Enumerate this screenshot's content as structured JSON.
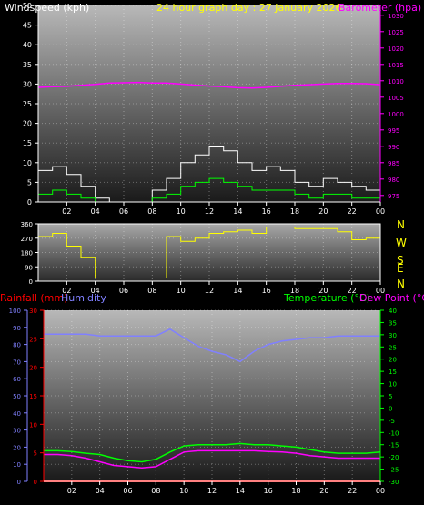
{
  "header": {
    "title": "24 hour graph day : 27 January 2026",
    "wind_label": "Windspeed (kph)",
    "baro_label": "Barometer (hpa)",
    "rain_label": "Rainfall (mm)",
    "humidity_label": "Humidity",
    "temp_label": "Temperature (°C)",
    "dew_label": "Dew Point (°C)"
  },
  "colors": {
    "title": "#ffff00",
    "wind": "#ffffff",
    "wind_avg": "#00ff00",
    "baro": "#ff00ff",
    "direction": "#ffff00",
    "rain": "#ff0000",
    "rain_bar": "#ffcc00",
    "humidity": "#8080ff",
    "temp": "#00ff00",
    "dew": "#ff00ff",
    "axis": "#ffffff"
  },
  "chart_data": [
    {
      "type": "line",
      "name": "wind-baro",
      "x_ticks": [
        "02",
        "04",
        "06",
        "08",
        "10",
        "12",
        "14",
        "16",
        "18",
        "20",
        "22",
        "00"
      ],
      "y_left_ticks": [
        0,
        5,
        10,
        15,
        20,
        25,
        30,
        35,
        40,
        45,
        50
      ],
      "y_right_ticks": [
        975,
        980,
        985,
        990,
        995,
        1000,
        1005,
        1010,
        1015,
        1020,
        1025,
        1030
      ],
      "ylim_left": [
        0,
        50
      ],
      "ylim_right": [
        973,
        1033
      ],
      "x": [
        0,
        1,
        2,
        3,
        4,
        5,
        6,
        7,
        8,
        9,
        10,
        11,
        12,
        13,
        14,
        15,
        16,
        17,
        18,
        19,
        20,
        21,
        22,
        23,
        24
      ],
      "series": [
        {
          "values": [
            8,
            9,
            7,
            4,
            1,
            0,
            0,
            0,
            3,
            6,
            10,
            12,
            14,
            13,
            10,
            8,
            9,
            8,
            5,
            4,
            6,
            5,
            4,
            3,
            8
          ]
        },
        {
          "values": [
            2,
            3,
            2,
            1,
            0,
            0,
            0,
            0,
            1,
            2,
            4,
            5,
            6,
            5,
            4,
            3,
            3,
            3,
            2,
            1,
            2,
            2,
            1,
            1,
            3
          ]
        },
        {
          "values": [
            1008.0,
            1008.2,
            1008.3,
            1008.6,
            1008.9,
            1009.3,
            1009.4,
            1009.5,
            1009.3,
            1009.3,
            1009.0,
            1008.7,
            1008.4,
            1008.2,
            1007.9,
            1007.8,
            1008.0,
            1008.3,
            1008.6,
            1008.8,
            1009.0,
            1009.2,
            1009.2,
            1009.1,
            1008.8
          ]
        }
      ]
    },
    {
      "type": "line",
      "name": "direction",
      "x_ticks": [
        "02",
        "04",
        "06",
        "08",
        "10",
        "12",
        "14",
        "16",
        "18",
        "20",
        "22",
        "00"
      ],
      "y_left_ticks": [
        0,
        90,
        180,
        270,
        360
      ],
      "y_right_ticks": [
        "N",
        "W",
        "S",
        "E",
        "N"
      ],
      "ylim_left": [
        0,
        360
      ],
      "x": [
        0,
        1,
        2,
        3,
        4,
        5,
        6,
        7,
        8,
        9,
        10,
        11,
        12,
        13,
        14,
        15,
        16,
        17,
        18,
        19,
        20,
        21,
        22,
        23,
        24
      ],
      "series": [
        {
          "values": [
            280,
            300,
            220,
            150,
            20,
            20,
            20,
            20,
            20,
            280,
            250,
            270,
            300,
            310,
            320,
            300,
            340,
            340,
            330,
            330,
            330,
            310,
            260,
            270,
            270
          ]
        }
      ]
    },
    {
      "type": "line",
      "name": "temp-humidity",
      "x_ticks": [
        "02",
        "04",
        "06",
        "08",
        "10",
        "12",
        "14",
        "16",
        "18",
        "20",
        "22",
        "00"
      ],
      "y_left_ticks": [
        0,
        10,
        20,
        30,
        40,
        50,
        60,
        70,
        80,
        90,
        100
      ],
      "y_left2_ticks": [
        0,
        5,
        10,
        15,
        20,
        25,
        30
      ],
      "y_right_ticks": [
        -30,
        -25,
        -20,
        -15,
        -10,
        -5,
        0,
        5,
        10,
        15,
        20,
        25,
        30,
        35,
        40
      ],
      "ylim_left": [
        0,
        100
      ],
      "ylim_right": [
        -30,
        40
      ],
      "x": [
        0,
        1,
        2,
        3,
        4,
        5,
        6,
        7,
        8,
        9,
        10,
        11,
        12,
        13,
        14,
        15,
        16,
        17,
        18,
        19,
        20,
        21,
        22,
        23,
        24
      ],
      "series": [
        {
          "values": [
            86,
            86,
            86,
            86,
            85,
            85,
            85,
            85,
            85,
            89,
            84,
            79,
            76,
            74,
            70,
            76,
            80,
            82,
            83,
            84,
            84,
            85,
            85,
            85,
            85
          ]
        },
        {
          "values": [
            -17.5,
            -17.5,
            -17.8,
            -18.5,
            -19,
            -20.5,
            -21.5,
            -22,
            -21,
            -18,
            -15.5,
            -15,
            -15,
            -15,
            -14.5,
            -15,
            -15,
            -15.5,
            -16,
            -17,
            -18,
            -18.5,
            -18.5,
            -18.5,
            -18
          ]
        },
        {
          "values": [
            -19,
            -19,
            -19.5,
            -20.5,
            -22,
            -23.5,
            -24,
            -24.5,
            -24,
            -21,
            -18,
            -17.5,
            -17.5,
            -17.5,
            -17.5,
            -17.5,
            -17.8,
            -18,
            -18.5,
            -19.5,
            -20,
            -20.5,
            -20.5,
            -20.5,
            -20.5
          ]
        },
        {
          "values": [
            0,
            0,
            0,
            0,
            0,
            0,
            0,
            0,
            0,
            0,
            0,
            0,
            0,
            0,
            0,
            0,
            0,
            0,
            0,
            0,
            0,
            0,
            0,
            0,
            0
          ]
        }
      ]
    }
  ],
  "direction_labels": [
    "N",
    "W",
    "S",
    "E",
    "N"
  ]
}
